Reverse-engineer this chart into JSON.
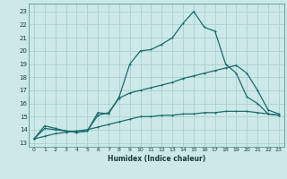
{
  "xlabel": "Humidex (Indice chaleur)",
  "bg_color": "#cce8e8",
  "grid_color": "#aad0d0",
  "line_color": "#1a6b6b",
  "x_ticks": [
    0,
    1,
    2,
    3,
    4,
    5,
    6,
    7,
    8,
    9,
    10,
    11,
    12,
    13,
    14,
    15,
    16,
    17,
    18,
    19,
    20,
    21,
    22,
    23
  ],
  "y_ticks": [
    13,
    14,
    15,
    16,
    17,
    18,
    19,
    20,
    21,
    22,
    23
  ],
  "xlim": [
    -0.5,
    23.5
  ],
  "ylim": [
    12.7,
    23.6
  ],
  "curve1_x": [
    0,
    1,
    2,
    3,
    4,
    5,
    6,
    7,
    8,
    9,
    10,
    11,
    12,
    13,
    14,
    15,
    16,
    17,
    18,
    19,
    20,
    21,
    22,
    23
  ],
  "curve1_y": [
    13.3,
    14.3,
    14.1,
    13.9,
    13.8,
    13.9,
    15.3,
    15.2,
    16.5,
    19.0,
    20.0,
    20.1,
    20.5,
    21.0,
    22.1,
    23.0,
    21.8,
    21.5,
    19.0,
    18.3,
    16.5,
    16.0,
    15.2,
    15.1
  ],
  "curve2_x": [
    0,
    1,
    2,
    3,
    4,
    5,
    6,
    7,
    8,
    9,
    10,
    11,
    12,
    13,
    14,
    15,
    16,
    17,
    18,
    19,
    20,
    21,
    22,
    23
  ],
  "curve2_y": [
    13.3,
    14.1,
    14.0,
    13.9,
    13.8,
    13.9,
    15.1,
    15.3,
    16.4,
    16.8,
    17.0,
    17.2,
    17.4,
    17.6,
    17.9,
    18.1,
    18.3,
    18.5,
    18.7,
    18.9,
    18.3,
    17.0,
    15.5,
    15.2
  ],
  "curve3_x": [
    0,
    1,
    2,
    3,
    4,
    5,
    6,
    7,
    8,
    9,
    10,
    11,
    12,
    13,
    14,
    15,
    16,
    17,
    18,
    19,
    20,
    21,
    22,
    23
  ],
  "curve3_y": [
    13.3,
    13.5,
    13.7,
    13.8,
    13.9,
    14.0,
    14.2,
    14.4,
    14.6,
    14.8,
    15.0,
    15.0,
    15.1,
    15.1,
    15.2,
    15.2,
    15.3,
    15.3,
    15.4,
    15.4,
    15.4,
    15.3,
    15.2,
    15.1
  ]
}
